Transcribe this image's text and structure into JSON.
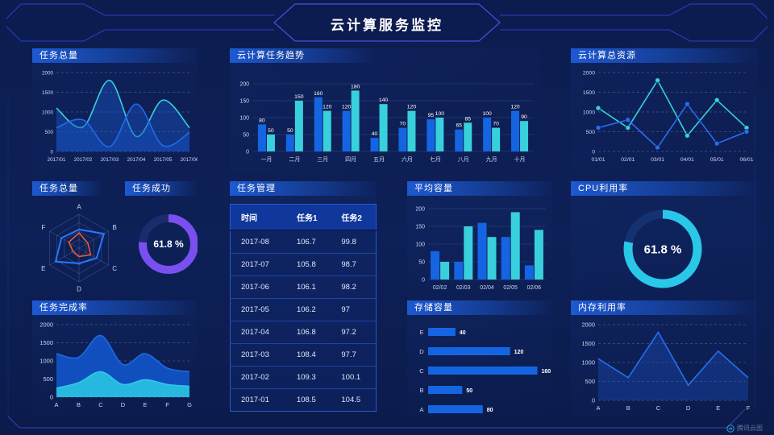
{
  "header": {
    "title": "云计算服务监控"
  },
  "footer": {
    "logo": "腾讯云图"
  },
  "panels": {
    "taskTotal": {
      "title": "任务总量",
      "chart_data": {
        "type": "line",
        "x": [
          "2017/01",
          "2017/02",
          "2017/03",
          "2017/04",
          "2017/05",
          "2017/06"
        ],
        "ylim": [
          0,
          2000
        ],
        "yticks": [
          0,
          500,
          1000,
          1500,
          2000
        ],
        "grid": "dashed",
        "series": [
          {
            "name": "series-cyan",
            "color": "#38d0dc",
            "fill": "rgba(24,90,205,0.40)",
            "values": [
              1100,
              620,
              1800,
              380,
              1300,
              600
            ]
          },
          {
            "name": "series-blue",
            "color": "#1f6bee",
            "fill": "rgba(24,80,195,0.45)",
            "values": [
              600,
              800,
              120,
              1200,
              150,
              480
            ]
          }
        ]
      }
    },
    "trend": {
      "title": "云计算任务趋势",
      "chart_data": {
        "type": "bar",
        "categories": [
          "一月",
          "二月",
          "三月",
          "四月",
          "五月",
          "六月",
          "七月",
          "八月",
          "九月",
          "十月"
        ],
        "ylim": [
          0,
          200
        ],
        "yticks": [
          0,
          50,
          100,
          150,
          200
        ],
        "show_labels": true,
        "series": [
          {
            "name": "任务1",
            "color": "#1565e2",
            "values": [
              80,
              50,
              160,
              120,
              40,
              70,
              95,
              65,
              100,
              120
            ]
          },
          {
            "name": "任务2",
            "color": "#38d0dc",
            "values": [
              50,
              150,
              120,
              180,
              140,
              120,
              100,
              85,
              70,
              90
            ]
          }
        ]
      }
    },
    "resources": {
      "title": "云计算总资源",
      "chart_data": {
        "type": "line",
        "x": [
          "01/01",
          "02/01",
          "03/01",
          "04/01",
          "05/01",
          "06/01"
        ],
        "ylim": [
          0,
          2000
        ],
        "yticks": [
          0,
          500,
          1000,
          1500,
          2000
        ],
        "grid": "dashed",
        "markers": true,
        "series": [
          {
            "name": "series-cyan",
            "color": "#38d0dc",
            "values": [
              1100,
              600,
              1800,
              400,
              1300,
              600
            ]
          },
          {
            "name": "series-blue",
            "color": "#2a6cf0",
            "values": [
              600,
              800,
              100,
              1200,
              200,
              500
            ]
          }
        ]
      }
    },
    "radar": {
      "title": "任务总量",
      "chart_data": {
        "type": "radar",
        "axes": [
          "A",
          "B",
          "C",
          "D",
          "E",
          "F"
        ],
        "max": 100,
        "series": [
          {
            "name": "series-blue",
            "color": "#2979ff",
            "values": [
              55,
              85,
              60,
              45,
              80,
              60
            ]
          },
          {
            "name": "series-orange",
            "color": "#ff5a2b",
            "values": [
              45,
              30,
              40,
              25,
              20,
              35
            ]
          }
        ]
      }
    },
    "success": {
      "title": "任务成功",
      "chart_data": {
        "type": "donut",
        "value": 61.8,
        "label": "61.8 %",
        "color": "#7a4ff0",
        "track": "#1c2b6b"
      }
    },
    "manage": {
      "title": "任务管理",
      "chart_data": {
        "type": "table",
        "headers": [
          "时间",
          "任务1",
          "任务2"
        ],
        "rows": [
          [
            "2017-08",
            "106.7",
            "99.8"
          ],
          [
            "2017-07",
            "105.8",
            "98.7"
          ],
          [
            "2017-06",
            "106.1",
            "98.2"
          ],
          [
            "2017-05",
            "106.2",
            "97"
          ],
          [
            "2017-04",
            "106.8",
            "97.2"
          ],
          [
            "2017-03",
            "108.4",
            "97.7"
          ],
          [
            "2017-02",
            "109.3",
            "100.1"
          ],
          [
            "2017-01",
            "108.5",
            "104.5"
          ]
        ]
      }
    },
    "avgCap": {
      "title": "平均容量",
      "chart_data": {
        "type": "bar",
        "categories": [
          "02/02",
          "02/03",
          "02/04",
          "02/05",
          "02/06"
        ],
        "ylim": [
          0,
          200
        ],
        "yticks": [
          0,
          50,
          100,
          150,
          200
        ],
        "show_labels": false,
        "series": [
          {
            "name": "series-blue",
            "color": "#1565e2",
            "values": [
              80,
              50,
              160,
              120,
              40
            ]
          },
          {
            "name": "series-cyan",
            "color": "#38d0dc",
            "values": [
              50,
              150,
              120,
              190,
              140
            ]
          }
        ]
      }
    },
    "cpu": {
      "title": "CPU利用率",
      "chart_data": {
        "type": "donut",
        "value": 61.8,
        "label": "61.8 %",
        "color": "#29c7e8",
        "track": "#15316f"
      }
    },
    "completion": {
      "title": "任务完成率",
      "chart_data": {
        "type": "line",
        "x": [
          "A",
          "B",
          "C",
          "D",
          "E",
          "F",
          "G"
        ],
        "ylim": [
          0,
          2000
        ],
        "yticks": [
          0,
          500,
          1000,
          1500,
          2000
        ],
        "grid": "dashed",
        "series": [
          {
            "name": "series-blue",
            "color": "#1e6ae0",
            "fill": "rgba(17,84,200,0.92)",
            "values": [
              1200,
              1100,
              1700,
              900,
              1200,
              800,
              700
            ]
          },
          {
            "name": "series-cyan",
            "color": "#2ec9e8",
            "fill": "rgba(41,190,225,0.95)",
            "values": [
              250,
              400,
              700,
              350,
              480,
              350,
              300
            ]
          }
        ]
      }
    },
    "storage": {
      "title": "存储容量",
      "chart_data": {
        "type": "hbar",
        "categories": [
          "E",
          "D",
          "C",
          "B",
          "A"
        ],
        "values": [
          40,
          120,
          160,
          50,
          80
        ],
        "color": "#1565e2",
        "xmax": 170
      }
    },
    "memory": {
      "title": "内存利用率",
      "chart_data": {
        "type": "line",
        "x": [
          "A",
          "B",
          "C",
          "D",
          "E",
          "F"
        ],
        "ylim": [
          0,
          2000
        ],
        "yticks": [
          0,
          500,
          1000,
          1500,
          2000
        ],
        "grid": "dashed",
        "series": [
          {
            "name": "series-blue",
            "color": "#2470f0",
            "fill": "rgba(28,80,190,0.38)",
            "values": [
              1100,
              600,
              1800,
              400,
              1300,
              600
            ]
          }
        ]
      }
    }
  }
}
